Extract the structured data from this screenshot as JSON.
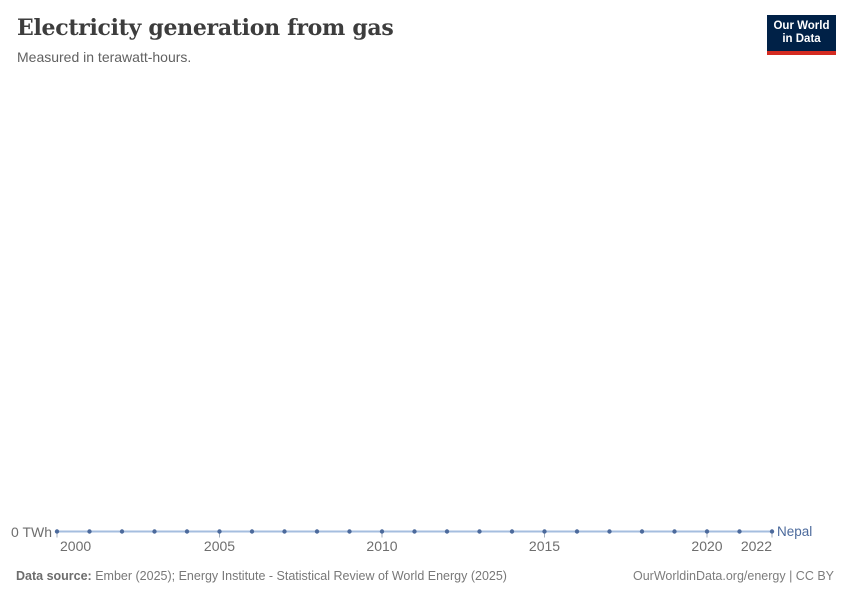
{
  "header": {
    "title": "Electricity generation from gas",
    "subtitle": "Measured in terawatt-hours.",
    "logo": {
      "line1": "Our World",
      "line2": "in Data",
      "bg_color": "#002147",
      "accent_color": "#d42b21"
    }
  },
  "chart_data": {
    "type": "line",
    "title": "Electricity generation from gas",
    "unit": "terawatt-hours",
    "xlim": [
      2000,
      2022
    ],
    "ylim": [
      0,
      0
    ],
    "grid": false,
    "legend_position": "end-of-line",
    "y_tick_label": "0 TWh",
    "x_ticks": [
      {
        "label": "2000",
        "year": 2000,
        "align": "left"
      },
      {
        "label": "2005",
        "year": 2005,
        "align": "center"
      },
      {
        "label": "2010",
        "year": 2010,
        "align": "center"
      },
      {
        "label": "2015",
        "year": 2015,
        "align": "center"
      },
      {
        "label": "2020",
        "year": 2020,
        "align": "center"
      },
      {
        "label": "2022",
        "year": 2022,
        "align": "right"
      }
    ],
    "series": [
      {
        "name": "Nepal",
        "x": [
          2000,
          2001,
          2002,
          2003,
          2004,
          2005,
          2006,
          2007,
          2008,
          2009,
          2010,
          2011,
          2012,
          2013,
          2014,
          2015,
          2016,
          2017,
          2018,
          2019,
          2020,
          2021,
          2022
        ],
        "values": [
          0,
          0,
          0,
          0,
          0,
          0,
          0,
          0,
          0,
          0,
          0,
          0,
          0,
          0,
          0,
          0,
          0,
          0,
          0,
          0,
          0,
          0,
          0
        ]
      }
    ],
    "colors": {
      "line": "#a5bedf",
      "marker": "#4c6a9c",
      "entity_label": "#4c6a9c",
      "axis_tick": "#a3aebc",
      "axis_text": "#6e6e6e"
    }
  },
  "footer": {
    "source_label": "Data source:",
    "source_text": " Ember (2025); Energy Institute - Statistical Review of World Energy (2025)",
    "right_text": "OurWorldinData.org/energy | CC BY"
  }
}
